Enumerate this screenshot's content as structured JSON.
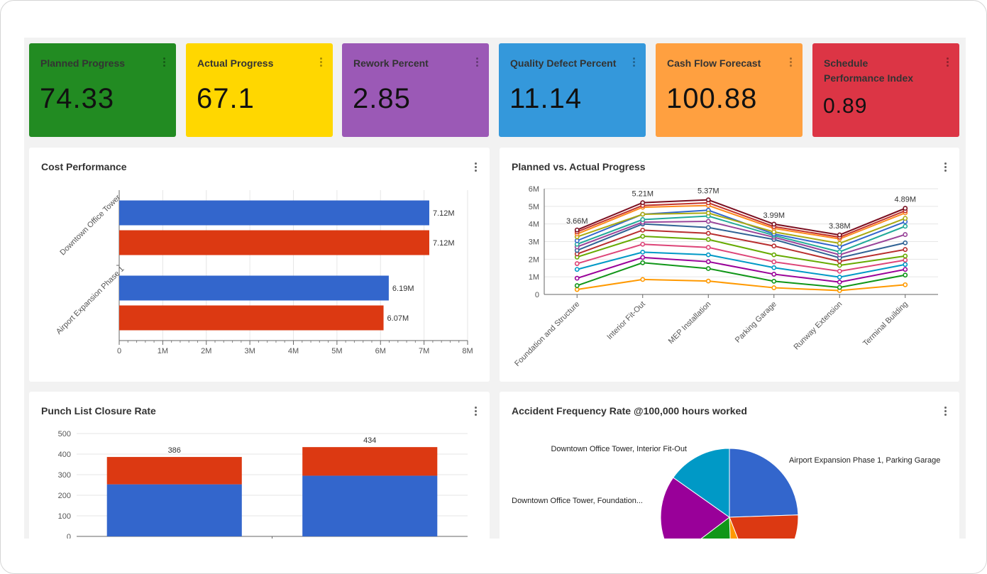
{
  "kpis": [
    {
      "title": "Planned Progress",
      "value": "74.33",
      "color": "#228b22"
    },
    {
      "title": "Actual Progress",
      "value": "67.1",
      "color": "#ffd700"
    },
    {
      "title": "Rework Percent",
      "value": "2.85",
      "color": "#9b59b6"
    },
    {
      "title": "Quality Defect Percent",
      "value": "11.14",
      "color": "#3498db"
    },
    {
      "title": "Cash Flow Forecast",
      "value": "100.88",
      "color": "#ffa040"
    },
    {
      "title": "Schedule Performance Index",
      "value": "0.89",
      "color": "#dc3545"
    }
  ],
  "cards": {
    "cost": {
      "title": "Cost Performance"
    },
    "progress": {
      "title": "Planned vs. Actual Progress"
    },
    "punch": {
      "title": "Punch List Closure Rate"
    },
    "accident": {
      "title": "Accident Frequency Rate @100,000 hours worked"
    }
  },
  "chart_data": [
    {
      "type": "bar",
      "orientation": "horizontal",
      "categories": [
        "Downtown Office Tower",
        "Airport Expansion Phase 1"
      ],
      "series": [
        {
          "color": "#3366cc",
          "values": [
            7.12,
            6.19
          ]
        },
        {
          "color": "#dc3912",
          "values": [
            7.12,
            6.07
          ]
        }
      ],
      "data_labels": [
        [
          "7.12M",
          "7.12M"
        ],
        [
          "6.19M",
          "6.07M"
        ]
      ],
      "xlim": [
        0,
        8
      ],
      "x_ticks": [
        "0",
        "1M",
        "2M",
        "3M",
        "4M",
        "5M",
        "6M",
        "7M",
        "8M"
      ],
      "grid": true
    },
    {
      "type": "line",
      "x": [
        "Foundation and Structure",
        "Interior Fit-Out",
        "MEP Installation",
        "Parking Garage",
        "Runway Extension",
        "Terminal Building"
      ],
      "ylim": [
        0,
        6
      ],
      "y_ticks": [
        "0",
        "1M",
        "2M",
        "3M",
        "4M",
        "5M",
        "6M"
      ],
      "top_labels": [
        "3.66M",
        "5.21M",
        "5.37M",
        "3.99M",
        "3.38M",
        "4.89M"
      ],
      "series": [
        {
          "color": "#ff9900",
          "values": [
            0.28,
            0.85,
            0.76,
            0.38,
            0.22,
            0.55
          ]
        },
        {
          "color": "#109618",
          "values": [
            0.5,
            1.8,
            1.47,
            0.75,
            0.4,
            1.1
          ]
        },
        {
          "color": "#990099",
          "values": [
            0.92,
            2.1,
            1.86,
            1.15,
            0.7,
            1.42
          ]
        },
        {
          "color": "#0099c6",
          "values": [
            1.42,
            2.4,
            2.25,
            1.52,
            0.98,
            1.7
          ]
        },
        {
          "color": "#dd4477",
          "values": [
            1.75,
            2.85,
            2.67,
            1.85,
            1.32,
            1.95
          ]
        },
        {
          "color": "#66aa00",
          "values": [
            2.12,
            3.3,
            3.12,
            2.25,
            1.65,
            2.18
          ]
        },
        {
          "color": "#b82e2e",
          "values": [
            2.3,
            3.65,
            3.47,
            2.75,
            1.88,
            2.55
          ]
        },
        {
          "color": "#316395",
          "values": [
            2.5,
            4.0,
            3.8,
            3.12,
            2.08,
            2.93
          ]
        },
        {
          "color": "#994499",
          "values": [
            2.7,
            4.1,
            4.15,
            3.25,
            2.25,
            3.4
          ]
        },
        {
          "color": "#22aa99",
          "values": [
            2.85,
            4.25,
            4.45,
            3.35,
            2.42,
            3.87
          ]
        },
        {
          "color": "#3366cc",
          "values": [
            3.05,
            4.55,
            4.78,
            3.43,
            2.7,
            4.13
          ]
        },
        {
          "color": "#aaaa11",
          "values": [
            3.27,
            4.55,
            4.62,
            3.55,
            2.9,
            4.32
          ]
        },
        {
          "color": "#fe8a1e",
          "values": [
            3.43,
            4.95,
            5.05,
            3.75,
            3.15,
            4.63
          ]
        },
        {
          "color": "#c3332c",
          "values": [
            3.55,
            5.05,
            5.2,
            3.85,
            3.25,
            4.75
          ]
        },
        {
          "color": "#7b0f20",
          "values": [
            3.66,
            5.21,
            5.37,
            3.99,
            3.38,
            4.89
          ]
        }
      ],
      "grid": true
    },
    {
      "type": "bar",
      "stacked": true,
      "ylim": [
        0,
        500
      ],
      "y_ticks": [
        "0",
        "100",
        "200",
        "300",
        "400",
        "500"
      ],
      "series": [
        {
          "color": "#3366cc",
          "values": [
            253,
            295
          ]
        },
        {
          "color": "#dc3912",
          "values": [
            133,
            139
          ]
        }
      ],
      "totals": [
        "386",
        "434"
      ],
      "grid": true
    },
    {
      "type": "pie",
      "labels": [
        "Airport Expansion Phase 1, Parking Garage",
        "Downtown Office Tower, Foundation...",
        "Downtown Office Tower, Interior Fit-Out"
      ],
      "slices": [
        {
          "color": "#3366cc",
          "value": 22.5
        },
        {
          "color": "#dc3912",
          "value": 18
        },
        {
          "color": "#ff9900",
          "value": 5
        },
        {
          "color": "#109618",
          "value": 14
        },
        {
          "color": "#990099",
          "value": 18.5
        },
        {
          "color": "#0099c6",
          "value": 14
        }
      ]
    }
  ]
}
